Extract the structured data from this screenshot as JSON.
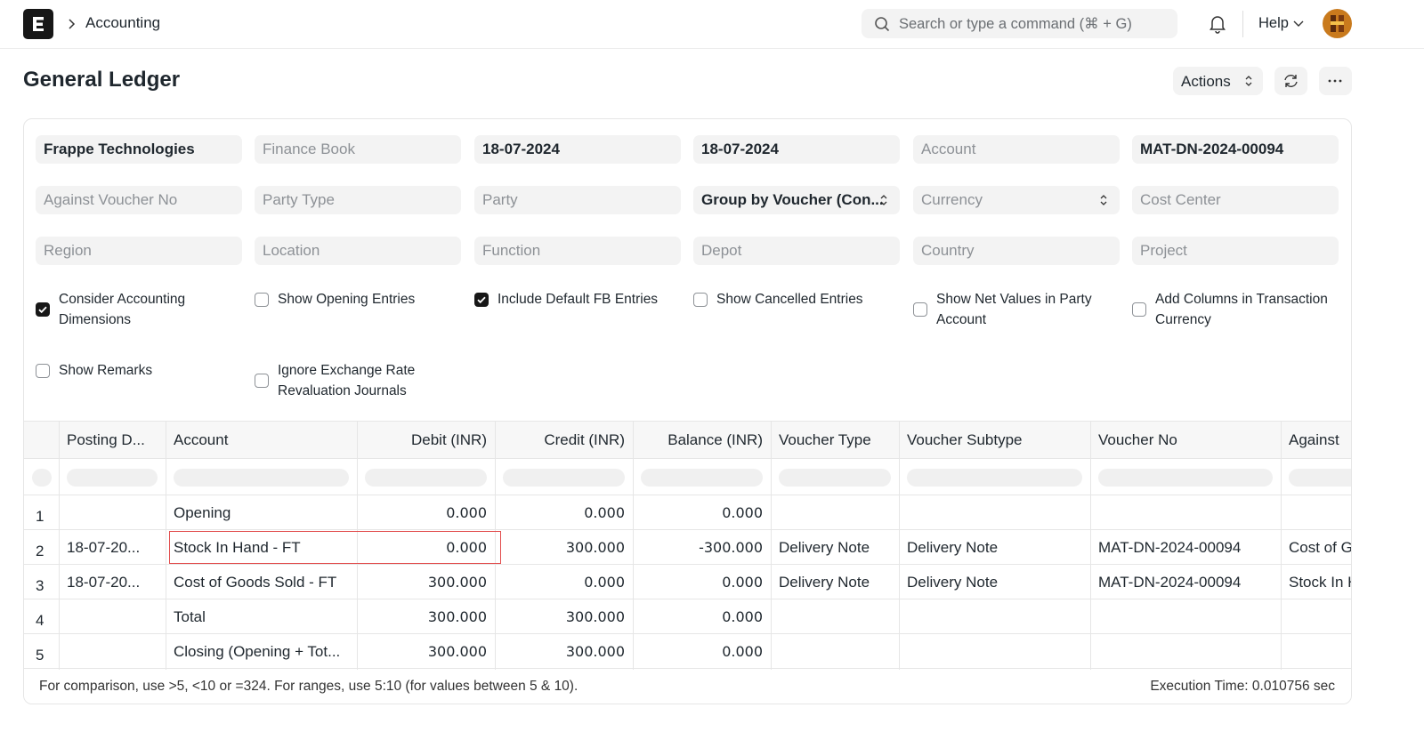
{
  "navbar": {
    "breadcrumb": "Accounting",
    "search_placeholder": "Search or type a command (⌘ + G)",
    "help": "Help"
  },
  "page": {
    "title": "General Ledger",
    "actions_button": "Actions"
  },
  "filters": [
    {
      "text": "Frappe Technologies",
      "placeholder": false
    },
    {
      "text": "Finance Book",
      "placeholder": true
    },
    {
      "text": "18-07-2024",
      "placeholder": false
    },
    {
      "text": "18-07-2024",
      "placeholder": false
    },
    {
      "text": "Account",
      "placeholder": true
    },
    {
      "text": "MAT-DN-2024-00094",
      "placeholder": false
    },
    {
      "text": "Against Voucher No",
      "placeholder": true
    },
    {
      "text": "Party Type",
      "placeholder": true
    },
    {
      "text": "Party",
      "placeholder": true
    },
    {
      "text": "Group by Voucher (Con...",
      "placeholder": false,
      "select": true
    },
    {
      "text": "Currency",
      "placeholder": true,
      "select": true
    },
    {
      "text": "Cost Center",
      "placeholder": true
    },
    {
      "text": "Region",
      "placeholder": true
    },
    {
      "text": "Location",
      "placeholder": true
    },
    {
      "text": "Function",
      "placeholder": true
    },
    {
      "text": "Depot",
      "placeholder": true
    },
    {
      "text": "Country",
      "placeholder": true
    },
    {
      "text": "Project",
      "placeholder": true
    }
  ],
  "checkboxes": [
    {
      "label": "Consider Accounting Dimensions",
      "checked": true
    },
    {
      "label": "Show Opening Entries",
      "checked": false
    },
    {
      "label": "Include Default FB Entries",
      "checked": true
    },
    {
      "label": "Show Cancelled Entries",
      "checked": false
    },
    {
      "label": "Show Net Values in Party Account",
      "checked": false
    },
    {
      "label": "Add Columns in Transaction Currency",
      "checked": false
    },
    {
      "label": "Show Remarks",
      "checked": false
    },
    {
      "label": "Ignore Exchange Rate Revaluation Journals",
      "checked": false
    }
  ],
  "table": {
    "columns": [
      "Posting D...",
      "Account",
      "Debit (INR)",
      "Credit (INR)",
      "Balance (INR)",
      "Voucher Type",
      "Voucher Subtype",
      "Voucher No",
      "Against"
    ],
    "rows": [
      {
        "number": "1",
        "cells": [
          null,
          "Opening",
          "0.000",
          "0.000",
          "0.000",
          null,
          null,
          null,
          null
        ]
      },
      {
        "number": "2",
        "cells": [
          "18-07-20...",
          "Stock In Hand - FT",
          "0.000",
          "300.000",
          "-300.000",
          "Delivery Note",
          "Delivery Note",
          "MAT-DN-2024-00094",
          "Cost of Goods Sold - FT"
        ]
      },
      {
        "number": "3",
        "cells": [
          "18-07-20...",
          "Cost of Goods Sold - FT",
          "300.000",
          "0.000",
          "0.000",
          "Delivery Note",
          "Delivery Note",
          "MAT-DN-2024-00094",
          "Stock In Hand - FT"
        ]
      },
      {
        "number": "4",
        "cells": [
          null,
          "Total",
          "300.000",
          "300.000",
          "0.000",
          null,
          null,
          null,
          null
        ]
      },
      {
        "number": "5",
        "cells": [
          null,
          "Closing (Opening + Tot...",
          "300.000",
          "300.000",
          "0.000",
          null,
          null,
          null,
          null
        ]
      }
    ]
  },
  "footer": {
    "hint": "For comparison, use >5, <10 or =324. For ranges, use 5:10 (for values between 5 & 10).",
    "execution_time": "Execution Time: 0.010756 sec"
  }
}
